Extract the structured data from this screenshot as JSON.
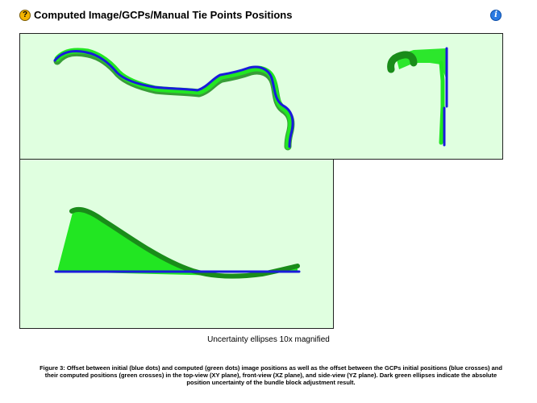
{
  "header": {
    "help_icon": "help-icon",
    "help_glyph": "?",
    "title": "Computed Image/GCPs/Manual Tie Points Positions",
    "info_icon": "info-icon",
    "info_glyph": "i"
  },
  "colors": {
    "panel_bg": "#e0ffe0",
    "initial_positions": "#1a1adc",
    "computed_positions": "#22e622",
    "ellipses": "#1a8c1a"
  },
  "uncertainty_note": "Uncertainty ellipses 10x magnified",
  "caption": "Figure 3: Offset between initial (blue dots) and computed (green dots) image positions as well as the offset between the GCPs initial positions (blue crosses) and their computed positions (green crosses) in the top-view (XY plane), front-view (XZ plane), and side-view (YZ plane). Dark green ellipses indicate the absolute position uncertainty of the bundle block adjustment result."
}
